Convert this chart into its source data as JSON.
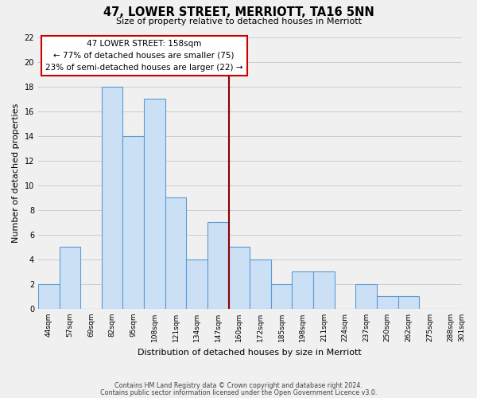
{
  "title": "47, LOWER STREET, MERRIOTT, TA16 5NN",
  "subtitle": "Size of property relative to detached houses in Merriott",
  "xlabel": "Distribution of detached houses by size in Merriott",
  "ylabel": "Number of detached properties",
  "footer_lines": [
    "Contains HM Land Registry data © Crown copyright and database right 2024.",
    "Contains public sector information licensed under the Open Government Licence v3.0."
  ],
  "bin_labels": [
    "44sqm",
    "57sqm",
    "69sqm",
    "82sqm",
    "95sqm",
    "108sqm",
    "121sqm",
    "134sqm",
    "147sqm",
    "160sqm",
    "172sqm",
    "185sqm",
    "198sqm",
    "211sqm",
    "224sqm",
    "237sqm",
    "250sqm",
    "262sqm",
    "275sqm",
    "288sqm",
    "301sqm"
  ],
  "bar_heights": [
    2,
    5,
    0,
    18,
    14,
    17,
    9,
    4,
    7,
    5,
    4,
    2,
    3,
    3,
    0,
    2,
    1,
    1,
    0,
    0
  ],
  "bar_color": "#cce0f5",
  "bar_edge_color": "#5b9bd5",
  "reference_line_label_index": 9,
  "reference_line_color": "#8b0000",
  "annotation_line1": "47 LOWER STREET: 158sqm",
  "annotation_line2": "← 77% of detached houses are smaller (75)",
  "annotation_line3": "23% of semi-detached houses are larger (22) →",
  "annotation_box_edge_color": "#cc0000",
  "annotation_box_face_color": "white",
  "ylim": [
    0,
    22
  ],
  "yticks": [
    0,
    2,
    4,
    6,
    8,
    10,
    12,
    14,
    16,
    18,
    20,
    22
  ],
  "grid_color": "#cccccc",
  "background_color": "#f0f0f0",
  "n_bins": 20,
  "bin_width": 13
}
